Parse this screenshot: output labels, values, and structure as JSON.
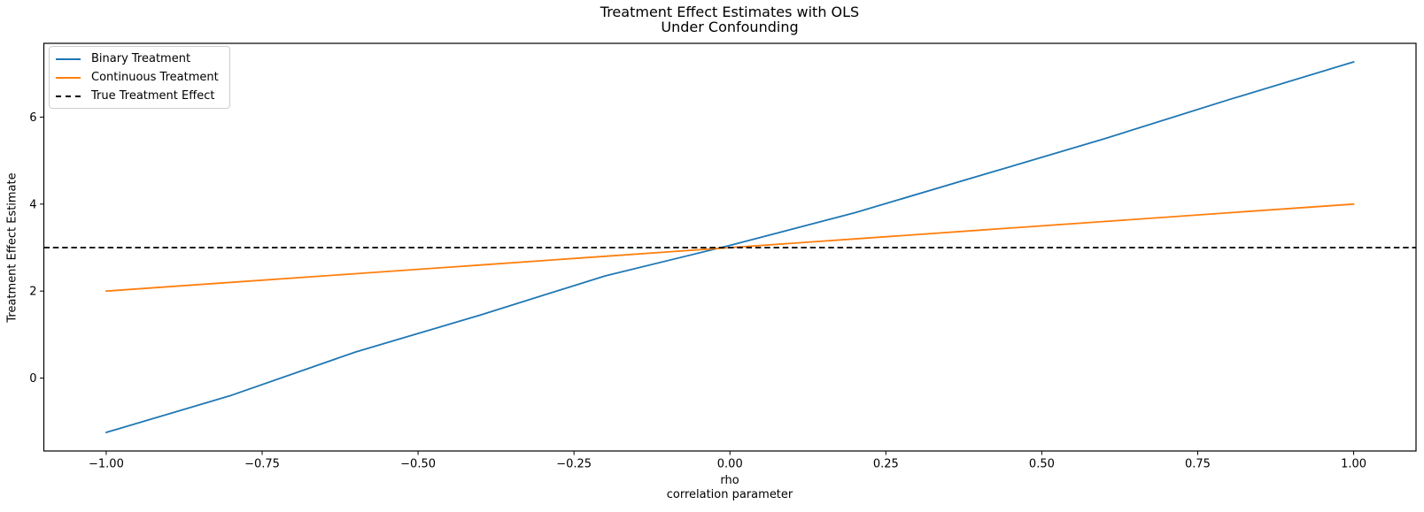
{
  "figure": {
    "background": "#ffffff"
  },
  "chart_data": {
    "type": "line",
    "title_lines": [
      "Treatment Effect Estimates with OLS",
      "Under Confounding"
    ],
    "xlabel_lines": [
      "rho",
      "correlation parameter"
    ],
    "ylabel": "Treatment Effect Estimate",
    "xlim": [
      -1.1,
      1.1
    ],
    "ylim": [
      -1.676,
      7.696
    ],
    "grid": false,
    "xticks": {
      "values": [
        -1.0,
        -0.75,
        -0.5,
        -0.25,
        0.0,
        0.25,
        0.5,
        0.75,
        1.0
      ],
      "labels": [
        "−1.00",
        "−0.75",
        "−0.50",
        "−0.25",
        "0.00",
        "0.25",
        "0.50",
        "0.75",
        "1.00"
      ]
    },
    "yticks": {
      "values": [
        0,
        2,
        4,
        6
      ],
      "labels": [
        "0",
        "2",
        "4",
        "6"
      ]
    },
    "x": [
      -1.0,
      -0.8,
      -0.6,
      -0.4,
      -0.2,
      0.0,
      0.2,
      0.4,
      0.6,
      0.8,
      1.0
    ],
    "series": [
      {
        "name": "Binary Treatment",
        "color": "#1f77b4",
        "style": "solid",
        "values": [
          -1.25,
          -0.4,
          0.6,
          1.45,
          2.35,
          3.05,
          3.8,
          4.65,
          5.5,
          6.4,
          7.27
        ]
      },
      {
        "name": "Continuous Treatment",
        "color": "#ff7f0e",
        "style": "solid",
        "values": [
          2.0,
          2.2,
          2.4,
          2.6,
          2.8,
          3.0,
          3.2,
          3.4,
          3.6,
          3.8,
          4.0
        ]
      },
      {
        "name": "True Treatment Effect",
        "color": "#000000",
        "style": "dashed",
        "constant": 3.0
      }
    ],
    "legend": {
      "position": "upper-left",
      "entries": [
        {
          "label": "Binary Treatment",
          "color": "#1f77b4",
          "style": "solid"
        },
        {
          "label": "Continuous Treatment",
          "color": "#ff7f0e",
          "style": "solid"
        },
        {
          "label": "True Treatment Effect",
          "color": "#000000",
          "style": "dashed"
        }
      ]
    }
  }
}
